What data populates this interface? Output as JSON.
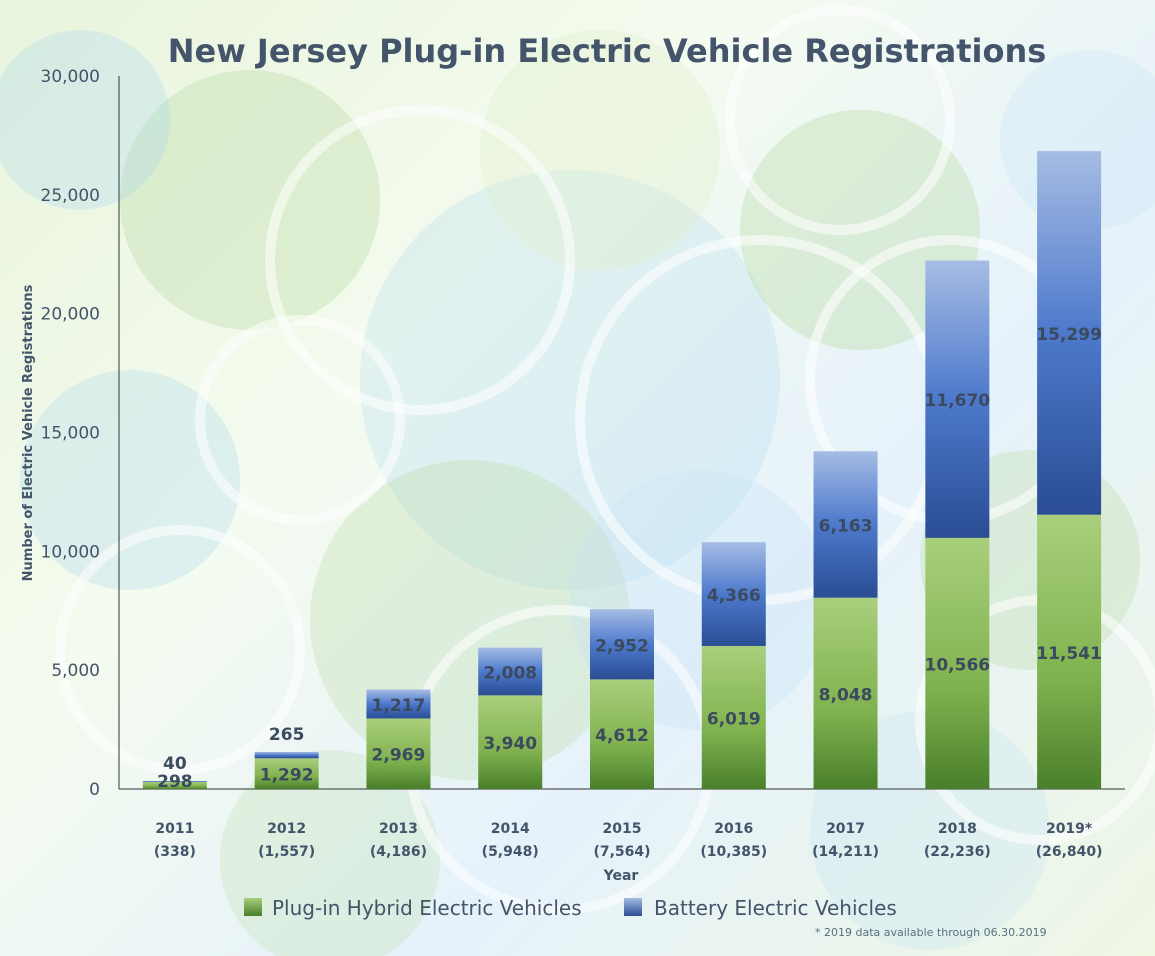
{
  "chart_data": {
    "type": "bar",
    "stacked": true,
    "title": "New Jersey Plug-in Electric Vehicle Registrations",
    "xlabel": "Year",
    "ylabel": "Number of Electric Vehicle Registrations",
    "ylim": [
      0,
      30000
    ],
    "yticks": [
      "0",
      "5,000",
      "10,000",
      "15,000",
      "20,000",
      "25,000",
      "30,000"
    ],
    "categories": [
      "2011",
      "2012",
      "2013",
      "2014",
      "2015",
      "2016",
      "2017",
      "2018",
      "2019*"
    ],
    "category_totals": [
      "(338)",
      "(1,557)",
      "(4,186)",
      "(5,948)",
      "(7,564)",
      "(10,385)",
      "(14,211)",
      "(22,236)",
      "(26,840)"
    ],
    "series": [
      {
        "name": "Plug-in Hybrid Electric Vehicles",
        "values": [
          298,
          1292,
          2969,
          3940,
          4612,
          6019,
          8048,
          10566,
          11541
        ],
        "labels": [
          "298",
          "1,292",
          "2,969",
          "3,940",
          "4,612",
          "6,019",
          "8,048",
          "10,566",
          "11,541"
        ],
        "color": "#6aa444"
      },
      {
        "name": "Battery Electric Vehicles",
        "values": [
          40,
          265,
          1217,
          2008,
          2952,
          4366,
          6163,
          11670,
          15299
        ],
        "labels": [
          "40",
          "265",
          "1,217",
          "2,008",
          "2,952",
          "4,366",
          "6,163",
          "11,670",
          "15,299"
        ],
        "color": "#3a68c0"
      }
    ],
    "legend_position": "bottom",
    "grid": false
  },
  "footnote": "* 2019 data available through 06.30.2019"
}
